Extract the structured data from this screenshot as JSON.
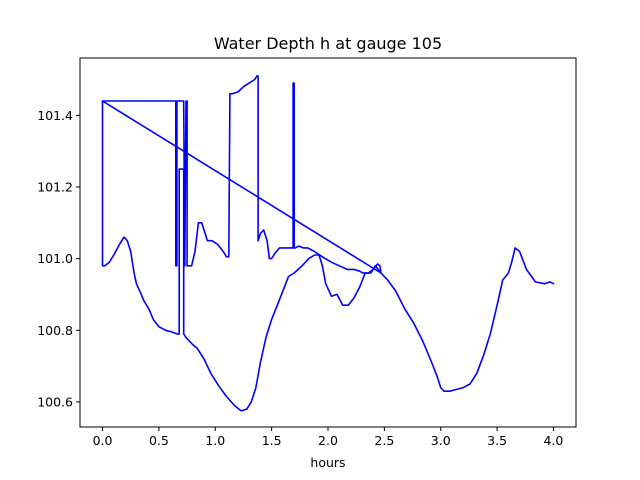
{
  "chart_data": {
    "type": "line",
    "title": "Water Depth h at gauge 105",
    "xlabel": "hours",
    "ylabel": "",
    "xlim": [
      -0.2,
      4.2
    ],
    "ylim": [
      100.53,
      101.56
    ],
    "xticks": [
      0.0,
      0.5,
      1.0,
      1.5,
      2.0,
      2.5,
      3.0,
      3.5,
      4.0
    ],
    "xtick_labels": [
      "0.0",
      "0.5",
      "1.0",
      "1.5",
      "2.0",
      "2.5",
      "3.0",
      "3.5",
      "4.0"
    ],
    "yticks": [
      100.6,
      100.8,
      101.0,
      101.2,
      101.4
    ],
    "ytick_labels": [
      "100.6",
      "100.8",
      "101.0",
      "101.2",
      "101.4"
    ],
    "grid": false,
    "legend": "none",
    "series": [
      {
        "color": "#0000ff",
        "x": [
          0.0,
          0.0,
          0.02,
          0.06,
          0.1,
          0.15,
          0.19,
          0.22,
          0.25,
          0.28,
          0.3,
          0.33,
          0.37,
          0.41,
          0.45,
          0.5,
          0.56,
          0.62,
          0.66,
          0.68,
          0.68,
          0.69,
          0.71,
          0.72,
          0.72,
          0.74,
          0.77,
          0.8,
          0.84,
          0.9,
          0.96,
          1.03,
          1.1,
          1.17,
          1.23,
          1.28,
          1.32,
          1.36,
          1.4,
          1.45,
          1.5,
          1.55,
          1.6,
          1.65,
          1.7,
          1.77,
          1.83,
          1.88,
          1.92,
          1.95,
          1.98,
          2.03,
          2.08,
          2.13,
          2.18,
          2.23,
          2.28,
          2.33,
          2.38,
          2.42,
          2.47,
          2.53,
          2.6,
          2.68,
          2.76,
          2.84,
          2.92,
          2.97,
          3.0,
          3.03,
          3.08,
          3.14,
          3.2,
          3.26,
          3.32,
          3.38,
          3.44,
          3.5,
          3.55,
          3.6,
          3.63,
          3.66,
          3.7,
          3.76,
          3.84,
          3.92,
          3.97,
          4.0
        ],
        "y": [
          101.44,
          100.98,
          100.98,
          100.99,
          101.01,
          101.04,
          101.06,
          101.05,
          101.02,
          100.96,
          100.93,
          100.91,
          100.88,
          100.86,
          100.83,
          100.81,
          100.8,
          100.795,
          100.79,
          100.79,
          101.25,
          101.25,
          101.25,
          101.25,
          100.79,
          100.78,
          100.77,
          100.76,
          100.75,
          100.72,
          100.68,
          100.645,
          100.615,
          100.59,
          100.575,
          100.58,
          100.6,
          100.64,
          100.71,
          100.78,
          100.83,
          100.87,
          100.91,
          100.95,
          100.96,
          100.98,
          101.0,
          101.01,
          101.01,
          100.98,
          100.93,
          100.895,
          100.9,
          100.87,
          100.87,
          100.89,
          100.92,
          100.96,
          100.96,
          100.98,
          100.96,
          100.94,
          100.91,
          100.86,
          100.82,
          100.77,
          100.71,
          100.67,
          100.64,
          100.63,
          100.63,
          100.635,
          100.64,
          100.65,
          100.68,
          100.73,
          100.79,
          100.87,
          100.94,
          100.96,
          100.99,
          101.03,
          101.02,
          100.97,
          100.935,
          100.93,
          100.935,
          100.93
        ]
      },
      {
        "color": "#0000ff",
        "x": [
          0.0,
          0.67,
          0.65,
          0.65,
          0.66,
          0.66,
          0.72,
          0.72,
          0.73,
          0.74,
          0.75,
          0.75,
          0.76,
          0.79,
          0.82,
          0.85,
          0.88,
          0.9,
          0.93,
          0.97,
          1.02,
          1.07,
          1.1,
          1.12,
          1.13,
          1.15,
          1.2,
          1.25,
          1.3,
          1.35,
          1.37,
          1.38,
          1.38,
          1.4,
          1.43,
          1.46,
          1.48,
          1.5,
          1.53,
          1.57,
          1.62,
          1.66,
          1.69,
          1.69,
          1.7,
          1.7,
          1.71,
          1.74,
          1.78,
          1.82,
          1.88,
          1.95,
          2.03,
          2.1,
          2.17,
          2.23,
          2.28,
          2.31,
          2.36,
          2.4,
          2.44,
          2.46,
          2.47,
          0.0
        ],
        "y": [
          101.44,
          101.44,
          101.44,
          100.98,
          100.98,
          101.44,
          101.44,
          101.44,
          100.98,
          101.44,
          101.44,
          100.98,
          100.98,
          100.98,
          101.02,
          101.1,
          101.1,
          101.08,
          101.05,
          101.05,
          101.04,
          101.02,
          101.005,
          101.005,
          101.46,
          101.46,
          101.465,
          101.48,
          101.49,
          101.5,
          101.51,
          101.51,
          101.05,
          101.07,
          101.08,
          101.05,
          101.0,
          101.0,
          101.015,
          101.03,
          101.03,
          101.03,
          101.03,
          101.49,
          101.49,
          101.03,
          101.03,
          101.035,
          101.03,
          101.03,
          101.02,
          101.005,
          100.99,
          100.98,
          100.97,
          100.97,
          100.965,
          100.96,
          100.96,
          100.97,
          100.985,
          100.98,
          100.96,
          101.44
        ]
      }
    ]
  }
}
